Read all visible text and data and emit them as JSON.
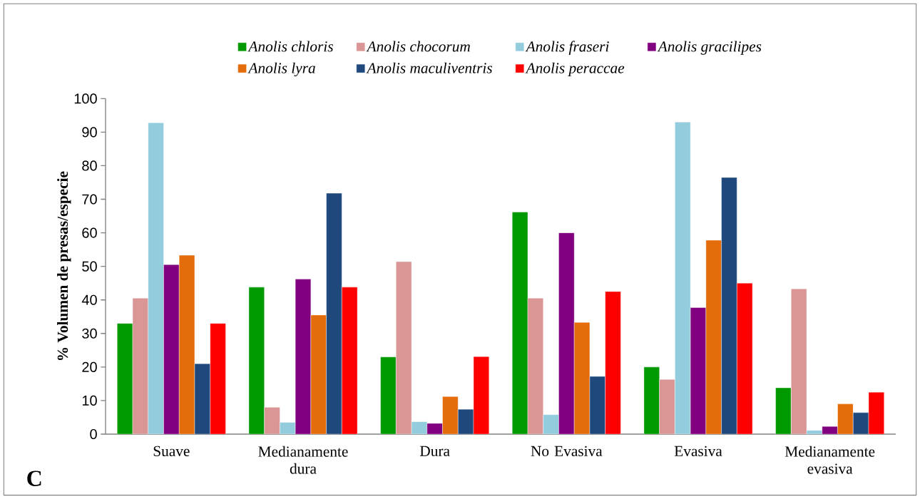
{
  "chart_data": {
    "type": "bar",
    "ylabel": "% Volumen de presas/especie",
    "categories": [
      "Suave",
      "Medianamente dura",
      "Dura",
      "No Evasiva",
      "Evasiva",
      "Medianamente evasiva"
    ],
    "series": [
      {
        "name": "Anolis chloris",
        "color": "#009900",
        "values": [
          33,
          43.8,
          23,
          66.2,
          20,
          13.8
        ]
      },
      {
        "name": "Anolis chocorum",
        "color": "#d99694",
        "values": [
          40.5,
          8,
          51.4,
          40.5,
          16.3,
          43.3
        ]
      },
      {
        "name": "Anolis fraseri",
        "color": "#93cddd",
        "values": [
          92.8,
          3.5,
          3.7,
          5.8,
          93,
          1.1
        ]
      },
      {
        "name": "Anolis gracilipes",
        "color": "#800080",
        "values": [
          50.5,
          46.2,
          3.2,
          60,
          37.7,
          2.3
        ]
      },
      {
        "name": "Anolis lyra",
        "color": "#e46c0a",
        "values": [
          53.3,
          35.5,
          11.2,
          33.3,
          57.8,
          9
        ]
      },
      {
        "name": "Anolis maculiventris",
        "color": "#1f497d",
        "values": [
          21,
          71.8,
          7.4,
          17.2,
          76.5,
          6.4
        ]
      },
      {
        "name": "Anolis peraccae",
        "color": "#ff0000",
        "values": [
          33,
          43.8,
          23.1,
          42.5,
          45,
          12.5
        ]
      }
    ],
    "ylim": [
      0,
      100
    ],
    "yticks": [
      0,
      10,
      20,
      30,
      40,
      50,
      60,
      70,
      80,
      90,
      100
    ],
    "legend": "top",
    "grid": false,
    "annotations": [
      "C"
    ]
  }
}
